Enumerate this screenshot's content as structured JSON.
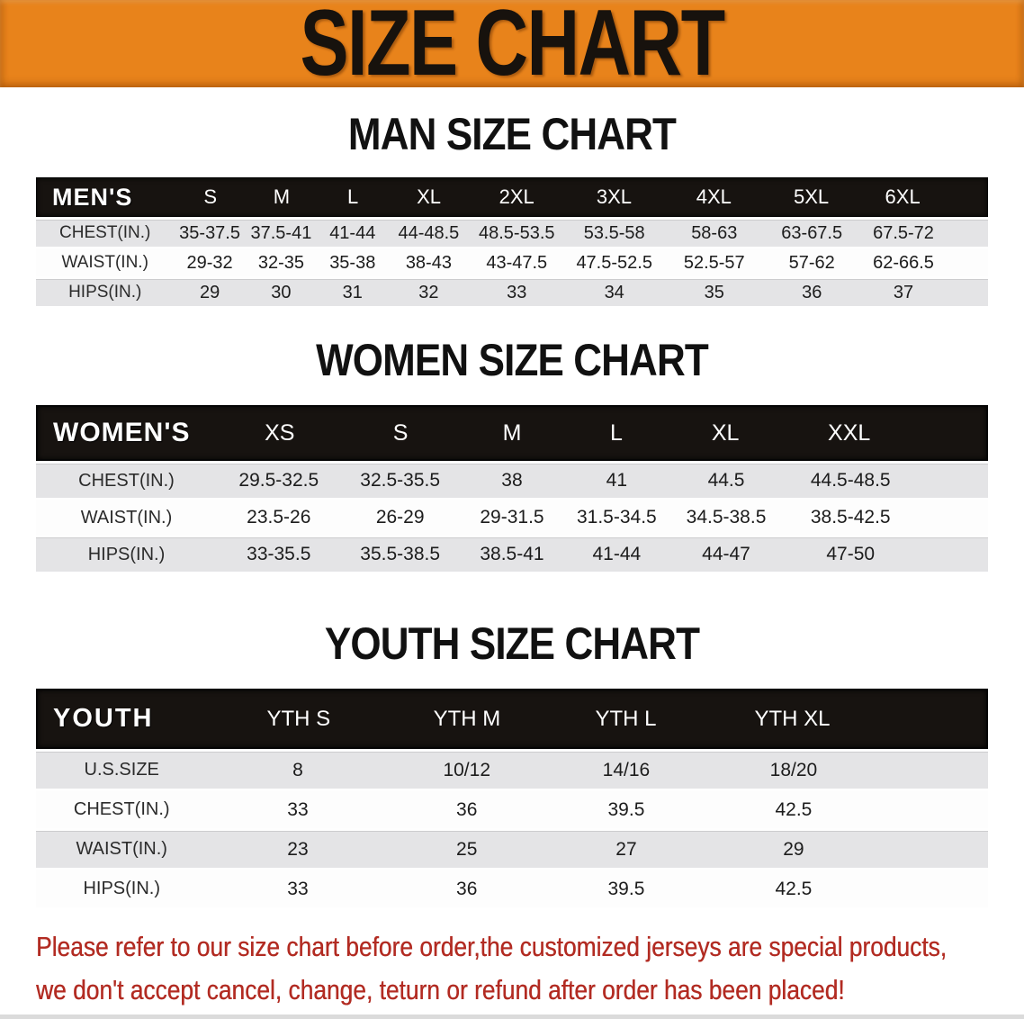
{
  "banner": {
    "title": "SIZE CHART"
  },
  "men": {
    "heading": "MAN SIZE CHART",
    "table": {
      "label": "MEN'S",
      "columns": [
        "S",
        "M",
        "L",
        "XL",
        "2XL",
        "3XL",
        "4XL",
        "5XL",
        "6XL"
      ],
      "rows": [
        {
          "label": "CHEST(IN.)",
          "values": [
            "35-37.5",
            "37.5-41",
            "41-44",
            "44-48.5",
            "48.5-53.5",
            "53.5-58",
            "58-63",
            "63-67.5",
            "67.5-72"
          ]
        },
        {
          "label": "WAIST(IN.)",
          "values": [
            "29-32",
            "32-35",
            "35-38",
            "38-43",
            "43-47.5",
            "47.5-52.5",
            "52.5-57",
            "57-62",
            "62-66.5"
          ]
        },
        {
          "label": "HIPS(IN.)",
          "values": [
            "29",
            "30",
            "31",
            "32",
            "33",
            "34",
            "35",
            "36",
            "37"
          ]
        }
      ]
    }
  },
  "women": {
    "heading": "WOMEN SIZE CHART",
    "table": {
      "label": "WOMEN'S",
      "columns": [
        "XS",
        "S",
        "M",
        "L",
        "XL",
        "XXL"
      ],
      "rows": [
        {
          "label": "CHEST(IN.)",
          "values": [
            "29.5-32.5",
            "32.5-35.5",
            "38",
            "41",
            "44.5",
            "44.5-48.5"
          ]
        },
        {
          "label": "WAIST(IN.)",
          "values": [
            "23.5-26",
            "26-29",
            "29-31.5",
            "31.5-34.5",
            "34.5-38.5",
            "38.5-42.5"
          ]
        },
        {
          "label": "HIPS(IN.)",
          "values": [
            "33-35.5",
            "35.5-38.5",
            "38.5-41",
            "41-44",
            "44-47",
            "47-50"
          ]
        }
      ]
    }
  },
  "youth": {
    "heading": "YOUTH SIZE CHART",
    "table": {
      "label": "YOUTH",
      "columns": [
        "YTH S",
        "YTH M",
        "YTH L",
        "YTH XL"
      ],
      "rows": [
        {
          "label": "U.S.SIZE",
          "values": [
            "8",
            "10/12",
            "14/16",
            "18/20"
          ]
        },
        {
          "label": "CHEST(IN.)",
          "values": [
            "33",
            "36",
            "39.5",
            "42.5"
          ]
        },
        {
          "label": "WAIST(IN.)",
          "values": [
            "23",
            "25",
            "27",
            "29"
          ]
        },
        {
          "label": "HIPS(IN.)",
          "values": [
            "33",
            "36",
            "39.5",
            "42.5"
          ]
        }
      ]
    }
  },
  "disclaimer": {
    "line1": "Please refer to our size chart before order,the customized jerseys are special products,",
    "line2": "we don't accept cancel, change, teturn or refund after order has been placed!"
  },
  "colors": {
    "banner_orange": "#E8831B",
    "header_black": "#171310",
    "row_gray": "#E4E4E6",
    "disclaimer_red": "#B22B22"
  }
}
